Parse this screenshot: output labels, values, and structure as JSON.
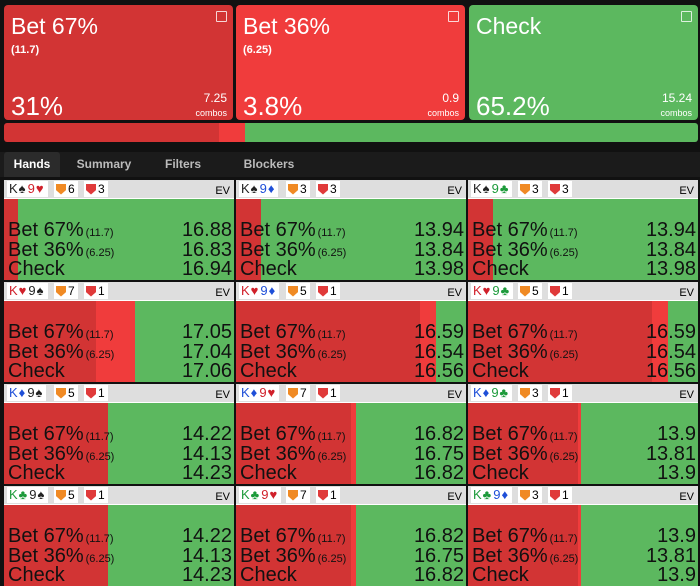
{
  "actions": [
    {
      "name": "Bet 67%",
      "size": "(11.7)",
      "frequency": "31%",
      "combos": "7.25",
      "color": "#d23434"
    },
    {
      "name": "Bet 36%",
      "size": "(6.25)",
      "frequency": "3.8%",
      "combos": "0.9",
      "color": "#f03c3c"
    },
    {
      "name": "Check",
      "frequency": "65.2%",
      "combos": "15.24",
      "color": "#5cb85f"
    }
  ],
  "combos_label": "combos",
  "tabs": [
    "Hands",
    "Summary",
    "Filters",
    "Blockers"
  ],
  "active_tab": 0,
  "ev_label": "EV",
  "hands": [
    {
      "cards": [
        [
          "K",
          "♠"
        ],
        [
          "9",
          "♥"
        ]
      ],
      "blockers": [
        6,
        3
      ],
      "mix": [
        6,
        0,
        94
      ],
      "ev": [
        16.88,
        16.83,
        16.94
      ]
    },
    {
      "cards": [
        [
          "K",
          "♠"
        ],
        [
          "9",
          "♦"
        ]
      ],
      "blockers": [
        3,
        3
      ],
      "mix": [
        11,
        0,
        89
      ],
      "ev": [
        13.94,
        13.84,
        13.98
      ]
    },
    {
      "cards": [
        [
          "K",
          "♠"
        ],
        [
          "9",
          "♣"
        ]
      ],
      "blockers": [
        3,
        3
      ],
      "mix": [
        11,
        0,
        89
      ],
      "ev": [
        13.94,
        13.84,
        13.98
      ]
    },
    {
      "cards": [
        [
          "K",
          "♥"
        ],
        [
          "9",
          "♠"
        ]
      ],
      "blockers": [
        7,
        1
      ],
      "mix": [
        40,
        17,
        43
      ],
      "ev": [
        17.05,
        17.04,
        17.06
      ]
    },
    {
      "cards": [
        [
          "K",
          "♥"
        ],
        [
          "9",
          "♦"
        ]
      ],
      "blockers": [
        5,
        1
      ],
      "mix": [
        80,
        7,
        13
      ],
      "ev": [
        16.59,
        16.54,
        16.56
      ]
    },
    {
      "cards": [
        [
          "K",
          "♥"
        ],
        [
          "9",
          "♣"
        ]
      ],
      "blockers": [
        5,
        1
      ],
      "mix": [
        80,
        7,
        13
      ],
      "ev": [
        16.59,
        16.54,
        16.56
      ]
    },
    {
      "cards": [
        [
          "K",
          "♦"
        ],
        [
          "9",
          "♠"
        ]
      ],
      "blockers": [
        5,
        1
      ],
      "mix": [
        45,
        0,
        55
      ],
      "ev": [
        14.22,
        14.13,
        14.23
      ]
    },
    {
      "cards": [
        [
          "K",
          "♦"
        ],
        [
          "9",
          "♥"
        ]
      ],
      "blockers": [
        7,
        1
      ],
      "mix": [
        50,
        2,
        48
      ],
      "ev": [
        16.82,
        16.75,
        16.82
      ]
    },
    {
      "cards": [
        [
          "K",
          "♦"
        ],
        [
          "9",
          "♣"
        ]
      ],
      "blockers": [
        3,
        1
      ],
      "mix": [
        48,
        1,
        51
      ],
      "ev": [
        13.9,
        13.81,
        13.9
      ]
    },
    {
      "cards": [
        [
          "K",
          "♣"
        ],
        [
          "9",
          "♠"
        ]
      ],
      "blockers": [
        5,
        1
      ],
      "mix": [
        45,
        0,
        55
      ],
      "ev": [
        14.22,
        14.13,
        14.23
      ]
    },
    {
      "cards": [
        [
          "K",
          "♣"
        ],
        [
          "9",
          "♥"
        ]
      ],
      "blockers": [
        7,
        1
      ],
      "mix": [
        50,
        2,
        48
      ],
      "ev": [
        16.82,
        16.75,
        16.82
      ]
    },
    {
      "cards": [
        [
          "K",
          "♣"
        ],
        [
          "9",
          "♦"
        ]
      ],
      "blockers": [
        3,
        1
      ],
      "mix": [
        48,
        1,
        51
      ],
      "ev": [
        13.9,
        13.81,
        13.9
      ]
    }
  ]
}
